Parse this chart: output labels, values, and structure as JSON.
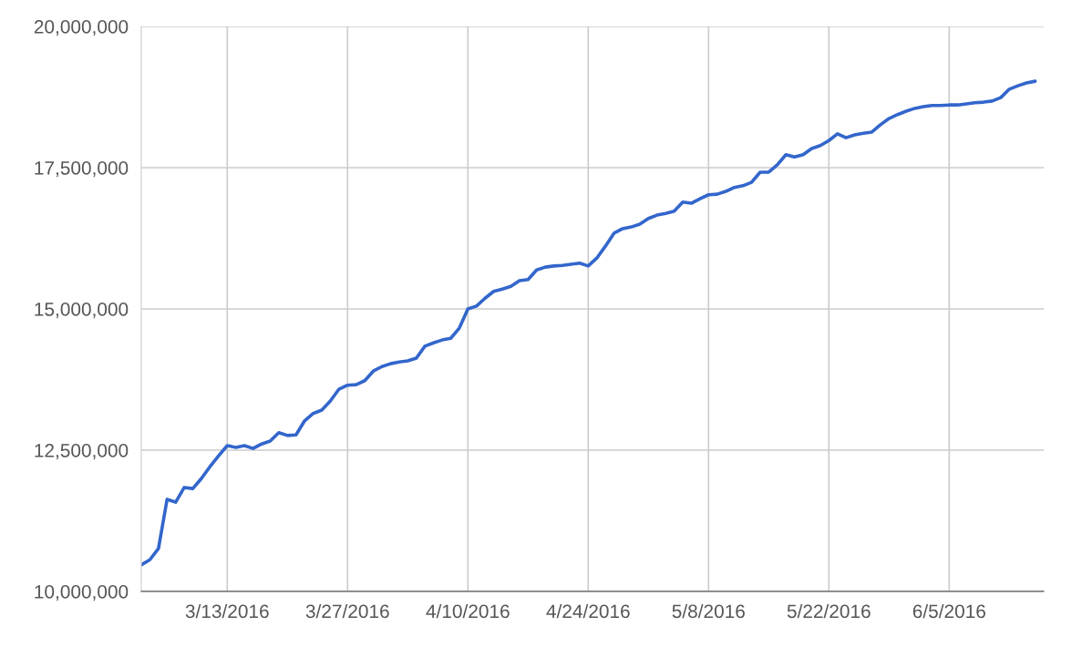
{
  "chart_data": {
    "type": "line",
    "x": [
      "2016-03-03",
      "2016-03-04",
      "2016-03-05",
      "2016-03-06",
      "2016-03-07",
      "2016-03-08",
      "2016-03-09",
      "2016-03-10",
      "2016-03-11",
      "2016-03-12",
      "2016-03-13",
      "2016-03-14",
      "2016-03-15",
      "2016-03-16",
      "2016-03-17",
      "2016-03-18",
      "2016-03-19",
      "2016-03-20",
      "2016-03-21",
      "2016-03-22",
      "2016-03-23",
      "2016-03-24",
      "2016-03-25",
      "2016-03-26",
      "2016-03-27",
      "2016-03-28",
      "2016-03-29",
      "2016-03-30",
      "2016-03-31",
      "2016-04-01",
      "2016-04-02",
      "2016-04-03",
      "2016-04-04",
      "2016-04-05",
      "2016-04-06",
      "2016-04-07",
      "2016-04-08",
      "2016-04-09",
      "2016-04-10",
      "2016-04-11",
      "2016-04-12",
      "2016-04-13",
      "2016-04-14",
      "2016-04-15",
      "2016-04-16",
      "2016-04-17",
      "2016-04-18",
      "2016-04-19",
      "2016-04-20",
      "2016-04-21",
      "2016-04-22",
      "2016-04-23",
      "2016-04-24",
      "2016-04-25",
      "2016-04-26",
      "2016-04-27",
      "2016-04-28",
      "2016-04-29",
      "2016-04-30",
      "2016-05-01",
      "2016-05-02",
      "2016-05-03",
      "2016-05-04",
      "2016-05-05",
      "2016-05-06",
      "2016-05-07",
      "2016-05-08",
      "2016-05-09",
      "2016-05-10",
      "2016-05-11",
      "2016-05-12",
      "2016-05-13",
      "2016-05-14",
      "2016-05-15",
      "2016-05-16",
      "2016-05-17",
      "2016-05-18",
      "2016-05-19",
      "2016-05-20",
      "2016-05-21",
      "2016-05-22",
      "2016-05-23",
      "2016-05-24",
      "2016-05-25",
      "2016-05-26",
      "2016-05-27",
      "2016-05-28",
      "2016-05-29",
      "2016-05-30",
      "2016-05-31",
      "2016-06-01",
      "2016-06-02",
      "2016-06-03",
      "2016-06-04",
      "2016-06-05",
      "2016-06-06",
      "2016-06-07",
      "2016-06-08",
      "2016-06-09",
      "2016-06-10",
      "2016-06-11",
      "2016-06-12",
      "2016-06-13",
      "2016-06-14",
      "2016-06-15"
    ],
    "series": [
      {
        "color": "#3366cc",
        "values": [
          10470000,
          10560000,
          10760000,
          11630000,
          11580000,
          11840000,
          11820000,
          12000000,
          12210000,
          12400000,
          12580000,
          12550000,
          12580000,
          12530000,
          12610000,
          12660000,
          12810000,
          12760000,
          12770000,
          13020000,
          13150000,
          13210000,
          13370000,
          13580000,
          13650000,
          13660000,
          13730000,
          13900000,
          13980000,
          14030000,
          14060000,
          14080000,
          14130000,
          14340000,
          14400000,
          14450000,
          14480000,
          14660000,
          15000000,
          15050000,
          15190000,
          15310000,
          15350000,
          15400000,
          15500000,
          15520000,
          15690000,
          15740000,
          15760000,
          15770000,
          15790000,
          15810000,
          15760000,
          15900000,
          16110000,
          16340000,
          16420000,
          16450000,
          16500000,
          16600000,
          16660000,
          16690000,
          16730000,
          16890000,
          16870000,
          16950000,
          17020000,
          17030000,
          17080000,
          17150000,
          17180000,
          17240000,
          17420000,
          17420000,
          17550000,
          17730000,
          17690000,
          17730000,
          17840000,
          17890000,
          17980000,
          18100000,
          18030000,
          18080000,
          18110000,
          18130000,
          18260000,
          18370000,
          18440000,
          18500000,
          18550000,
          18580000,
          18600000,
          18600000,
          18610000,
          18610000,
          18630000,
          18650000,
          18660000,
          18680000,
          18740000,
          18890000,
          18950000,
          19000000,
          19030000
        ]
      }
    ],
    "xlim": [
      "2016-03-03",
      "2016-06-16"
    ],
    "xticks": [
      {
        "value": "2016-03-13",
        "label": "3/13/2016"
      },
      {
        "value": "2016-03-27",
        "label": "3/27/2016"
      },
      {
        "value": "2016-04-10",
        "label": "4/10/2016"
      },
      {
        "value": "2016-04-24",
        "label": "4/24/2016"
      },
      {
        "value": "2016-05-08",
        "label": "5/8/2016"
      },
      {
        "value": "2016-05-22",
        "label": "5/22/2016"
      },
      {
        "value": "2016-06-05",
        "label": "6/5/2016"
      }
    ],
    "ylim": [
      10000000,
      20000000
    ],
    "yticks": [
      {
        "value": 10000000,
        "label": "10,000,000"
      },
      {
        "value": 12500000,
        "label": "12,500,000"
      },
      {
        "value": 15000000,
        "label": "15,000,000"
      },
      {
        "value": 17500000,
        "label": "17,500,000"
      },
      {
        "value": 20000000,
        "label": "20,000,000"
      }
    ],
    "grid": true
  }
}
